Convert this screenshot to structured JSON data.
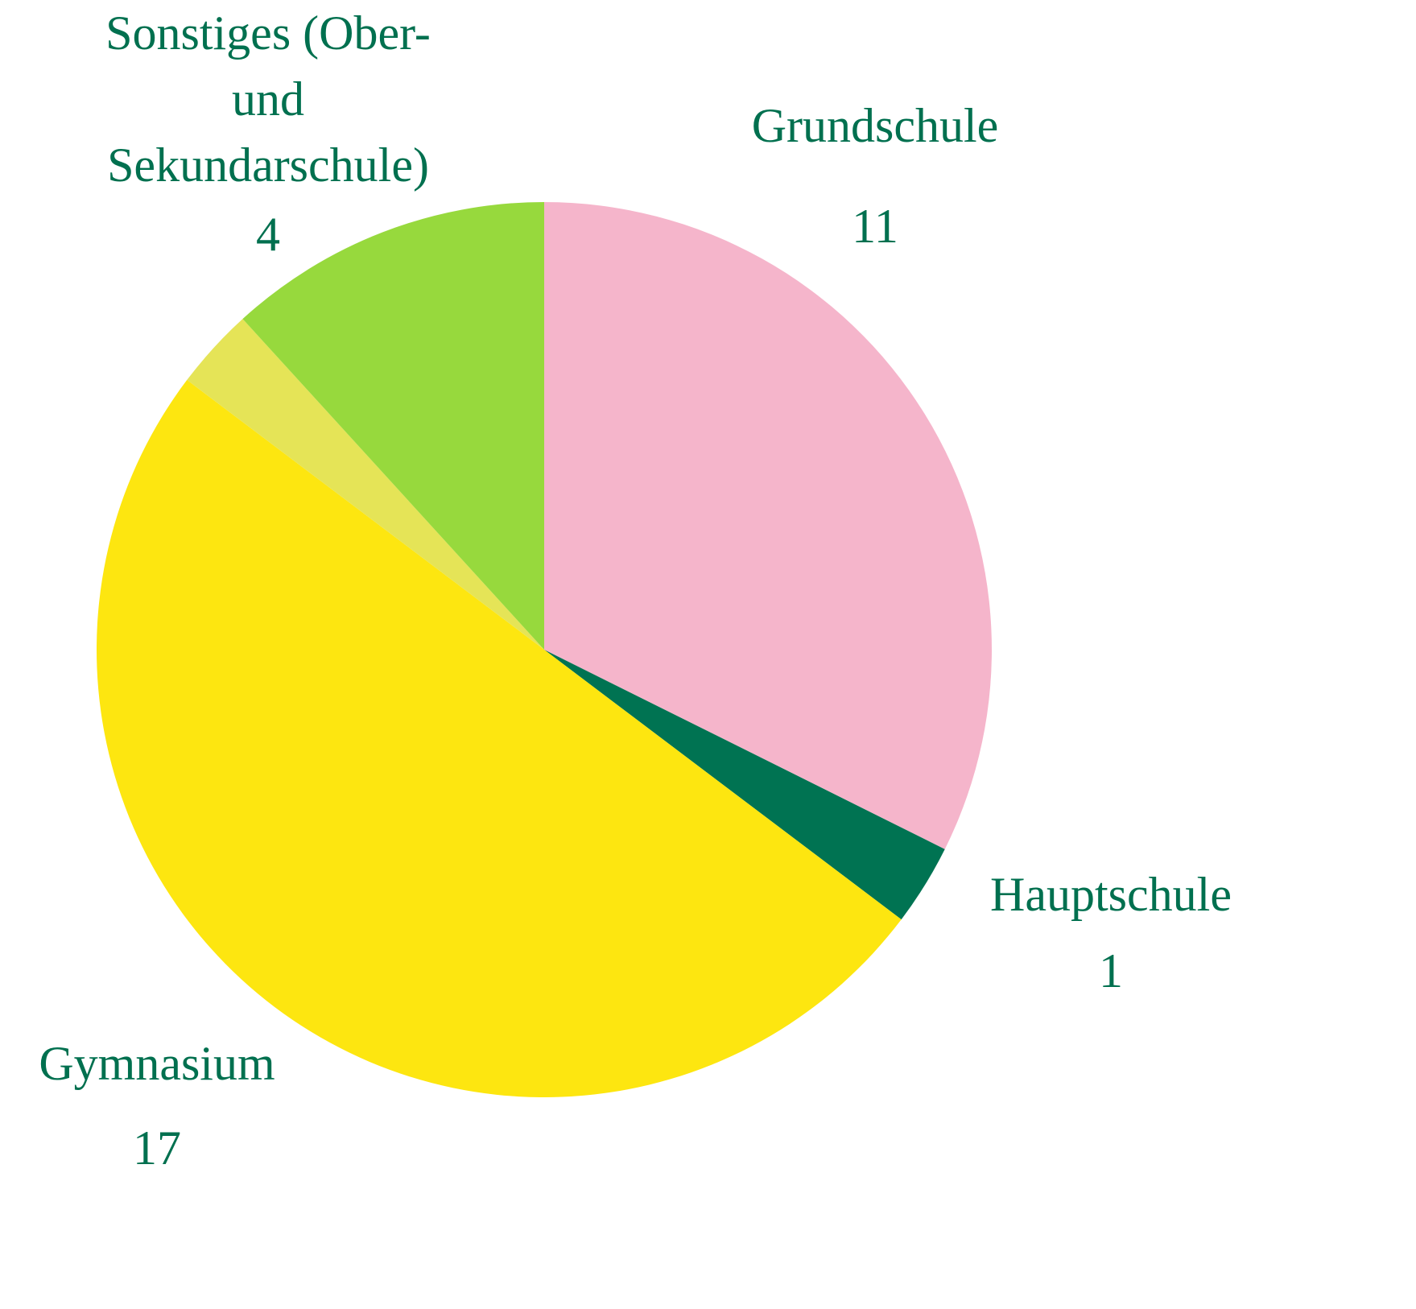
{
  "chart_data": {
    "type": "pie",
    "categories": [
      "Grundschule",
      "Hauptschule",
      "Gymnasium",
      null,
      "Sonstiges (Ober- und Sekundarschule)"
    ],
    "values": [
      11,
      1,
      17,
      1,
      4
    ],
    "colors": [
      "#f5b5cb",
      "#007352",
      "#fde610",
      "#e5e457",
      "#97d93d"
    ]
  }
}
